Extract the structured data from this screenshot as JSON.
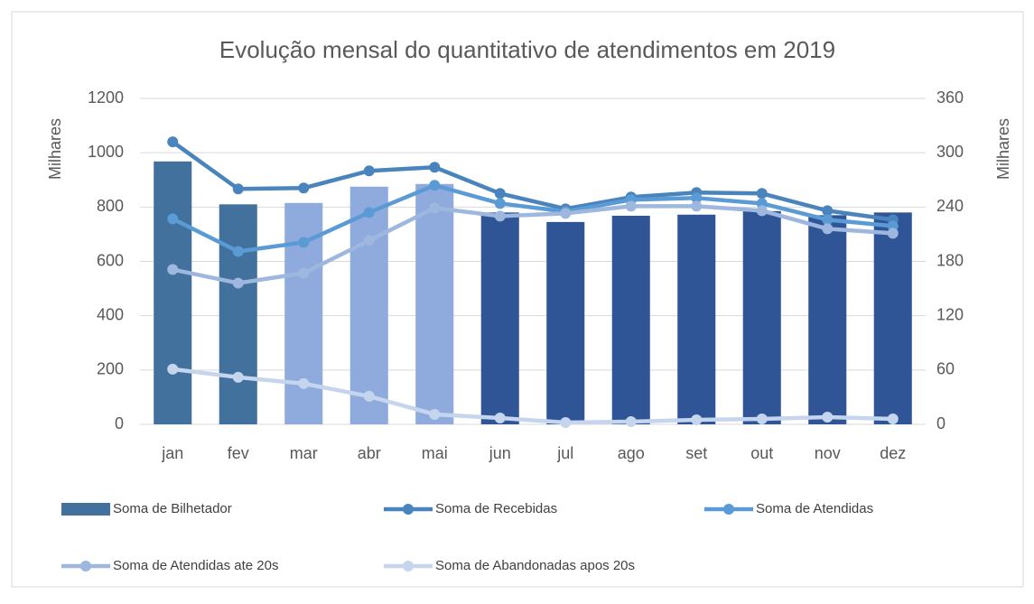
{
  "chart_data": {
    "type": "bar_line",
    "title": "Evolução mensal do quantitativo de atendimentos em 2019",
    "y_label": "Milhares",
    "y2_label": "Milhares",
    "categories": [
      "jan",
      "fev",
      "mar",
      "abr",
      "mai",
      "jun",
      "jul",
      "ago",
      "set",
      "out",
      "nov",
      "dez"
    ],
    "ylim": [
      0,
      1200
    ],
    "yticks": [
      0,
      200,
      400,
      600,
      800,
      1000,
      1200
    ],
    "y2lim": [
      0,
      360
    ],
    "y2ticks": [
      0,
      60,
      120,
      180,
      240,
      300,
      360
    ],
    "series": [
      {
        "name": "Soma de Bilhetador",
        "type": "bar",
        "color": "#41719c",
        "colors": [
          "#41719c",
          "#41719c",
          "#8faadc",
          "#8faadc",
          "#8faadc",
          "#2f5597",
          "#2f5597",
          "#2f5597",
          "#2f5597",
          "#2f5597",
          "#2f5597",
          "#2f5597"
        ],
        "values": [
          968,
          810,
          815,
          875,
          885,
          780,
          745,
          768,
          772,
          785,
          770,
          780
        ]
      },
      {
        "name": "Soma de Recebidas",
        "type": "line",
        "axis": "y2",
        "color": "#4a84bd",
        "values": [
          312,
          260,
          261,
          280,
          284,
          255,
          238,
          251,
          256,
          255,
          236,
          226
        ]
      },
      {
        "name": "Soma de Atendidas",
        "type": "line",
        "axis": "y2",
        "color": "#5b9bd5",
        "values": [
          227,
          191,
          201,
          234,
          264,
          244,
          235,
          248,
          250,
          244,
          226,
          219
        ]
      },
      {
        "name": "Soma de Atendidas ate 20s",
        "type": "line",
        "axis": "y2",
        "color": "#9db7df",
        "values": [
          171,
          156,
          167,
          203,
          239,
          230,
          233,
          241,
          241,
          236,
          216,
          211
        ]
      },
      {
        "name": "Soma de Abandonadas apos 20s",
        "type": "line",
        "axis": "y2",
        "color": "#c5d5ee",
        "values": [
          61,
          52,
          45,
          31,
          11,
          7,
          2,
          3,
          5,
          6,
          8,
          6
        ]
      }
    ],
    "grid": true
  }
}
